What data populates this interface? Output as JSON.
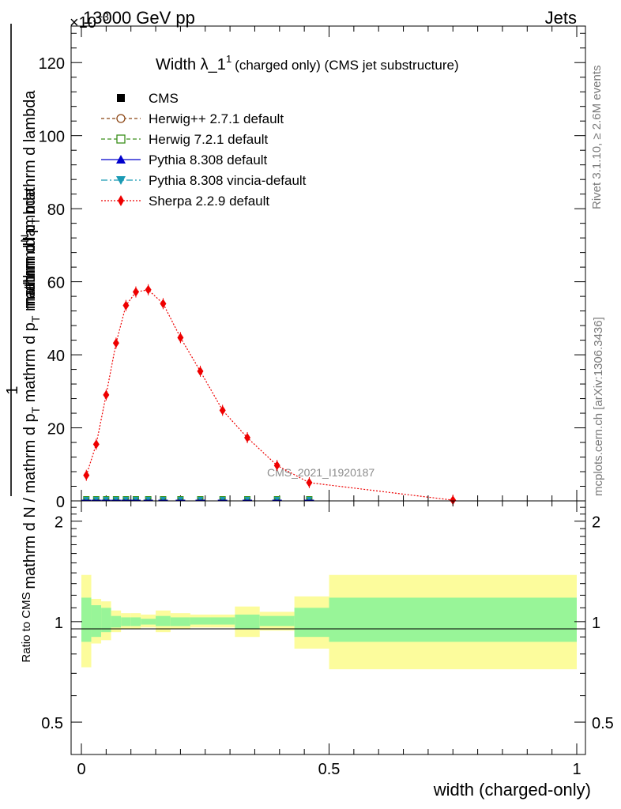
{
  "header": {
    "energy_label": "13000 GeV pp",
    "process_label": "Jets",
    "exponent_label": "×10",
    "exponent_power": "−3"
  },
  "side_labels": {
    "rivet": "Rivet 3.1.10, ≥ 2.6M events",
    "mcplots": "mcplots.cern.ch [arXiv:1306.3436]"
  },
  "watermark": "CMS_2021_I1920187",
  "colors": {
    "cms": "#000000",
    "herwig_pp": "#8b4513",
    "herwig7": "#3a8f1a",
    "pythia": "#0000cc",
    "vincia": "#1a9ab4",
    "sherpa": "#ee0000",
    "band_inner": "#98f598",
    "band_outer": "#fcfc9c"
  },
  "chart_data": [
    {
      "type": "line",
      "title": "Width λ_1^1 (charged only) (CMS jet substructure)",
      "title_main": "Width λ_1",
      "title_sup": "1",
      "title_rest": "(charged only) (CMS jet substructure)",
      "ylabel_numerator": "1",
      "ylabel_num_tail": "mathrm d",
      "ylabel_num_N": "N",
      "ylabel_top": "mathrm d p",
      "ylabel_top_sub": "T",
      "ylabel_top_rest": " mathrm d lambda",
      "ylabel_bottom": "mathrm d N / mathrm d p",
      "ylabel_bottom_sub": "T",
      "ylabel_bottom_rest": " mathrm d p",
      "ylabel_bottom_sub2": "T",
      "ylabel_bottom_tail": " mathrm d lambda",
      "xlim": [
        0,
        1
      ],
      "ylim": [
        0,
        130
      ],
      "y_scale_note": "×10^-3",
      "yticks": [
        0,
        20,
        40,
        60,
        80,
        100,
        120
      ],
      "legend": {
        "placement": "top-left",
        "entries": [
          {
            "key": "cms",
            "label": "CMS"
          },
          {
            "key": "herwig_pp",
            "label": "Herwig++ 2.7.1 default"
          },
          {
            "key": "herwig7",
            "label": "Herwig 7.2.1 default"
          },
          {
            "key": "pythia",
            "label": "Pythia 8.308 default"
          },
          {
            "key": "vincia",
            "label": "Pythia 8.308 vincia-default"
          },
          {
            "key": "sherpa",
            "label": "Sherpa 2.2.9 default"
          }
        ]
      },
      "baseline_series_x": [
        0.01,
        0.03,
        0.05,
        0.07,
        0.09,
        0.11,
        0.135,
        0.165,
        0.2,
        0.24,
        0.285,
        0.335,
        0.395,
        0.46
      ],
      "series": [
        {
          "name": "Sherpa 2.2.9 default",
          "key": "sherpa",
          "x": [
            0.01,
            0.03,
            0.05,
            0.07,
            0.09,
            0.11,
            0.135,
            0.165,
            0.2,
            0.24,
            0.285,
            0.335,
            0.395,
            0.46,
            0.75
          ],
          "y": [
            7.0,
            15.5,
            29.0,
            43.2,
            53.5,
            57.2,
            57.8,
            54.0,
            44.7,
            35.5,
            24.8,
            17.3,
            9.7,
            5.0,
            0.2
          ]
        },
        {
          "name": "CMS",
          "key": "cms",
          "y_value": 0.0
        },
        {
          "name": "Herwig++ 2.7.1 default",
          "key": "herwig_pp",
          "y_value": 0.0
        },
        {
          "name": "Herwig 7.2.1 default",
          "key": "herwig7",
          "y_value": 0.0
        },
        {
          "name": "Pythia 8.308 default",
          "key": "pythia",
          "y_value": 0.0
        },
        {
          "name": "Pythia 8.308 vincia-default",
          "key": "vincia",
          "y_value": 0.0
        }
      ]
    },
    {
      "type": "area",
      "ylabel": "Ratio to CMS",
      "xlabel": "width (charged-only)",
      "xlim": [
        0,
        1
      ],
      "ylim": [
        0.4,
        2.3
      ],
      "y_scale": "log",
      "yticks": [
        0.5,
        1,
        2
      ],
      "xticks": [
        0,
        0.5,
        1
      ],
      "bins": [
        {
          "x0": 0.0,
          "x1": 0.02,
          "inner": [
            0.87,
            1.18
          ],
          "outer": [
            0.73,
            1.38
          ]
        },
        {
          "x0": 0.02,
          "x1": 0.04,
          "inner": [
            0.9,
            1.12
          ],
          "outer": [
            0.86,
            1.17
          ]
        },
        {
          "x0": 0.04,
          "x1": 0.06,
          "inner": [
            0.93,
            1.1
          ],
          "outer": [
            0.88,
            1.15
          ]
        },
        {
          "x0": 0.06,
          "x1": 0.08,
          "inner": [
            0.96,
            1.04
          ],
          "outer": [
            0.93,
            1.08
          ]
        },
        {
          "x0": 0.08,
          "x1": 0.1,
          "inner": [
            0.97,
            1.03
          ],
          "outer": [
            0.95,
            1.06
          ]
        },
        {
          "x0": 0.1,
          "x1": 0.12,
          "inner": [
            0.97,
            1.03
          ],
          "outer": [
            0.95,
            1.06
          ]
        },
        {
          "x0": 0.12,
          "x1": 0.15,
          "inner": [
            0.98,
            1.02
          ],
          "outer": [
            0.96,
            1.05
          ]
        },
        {
          "x0": 0.15,
          "x1": 0.18,
          "inner": [
            0.97,
            1.04
          ],
          "outer": [
            0.93,
            1.08
          ]
        },
        {
          "x0": 0.18,
          "x1": 0.22,
          "inner": [
            0.97,
            1.03
          ],
          "outer": [
            0.95,
            1.06
          ]
        },
        {
          "x0": 0.22,
          "x1": 0.26,
          "inner": [
            0.98,
            1.03
          ],
          "outer": [
            0.96,
            1.05
          ]
        },
        {
          "x0": 0.26,
          "x1": 0.31,
          "inner": [
            0.98,
            1.03
          ],
          "outer": [
            0.96,
            1.05
          ]
        },
        {
          "x0": 0.31,
          "x1": 0.36,
          "inner": [
            0.95,
            1.05
          ],
          "outer": [
            0.9,
            1.11
          ]
        },
        {
          "x0": 0.36,
          "x1": 0.43,
          "inner": [
            0.97,
            1.04
          ],
          "outer": [
            0.94,
            1.07
          ]
        },
        {
          "x0": 0.43,
          "x1": 0.5,
          "inner": [
            0.9,
            1.1
          ],
          "outer": [
            0.83,
            1.19
          ]
        },
        {
          "x0": 0.5,
          "x1": 1.0,
          "inner": [
            0.87,
            1.18
          ],
          "outer": [
            0.72,
            1.38
          ]
        }
      ]
    }
  ]
}
